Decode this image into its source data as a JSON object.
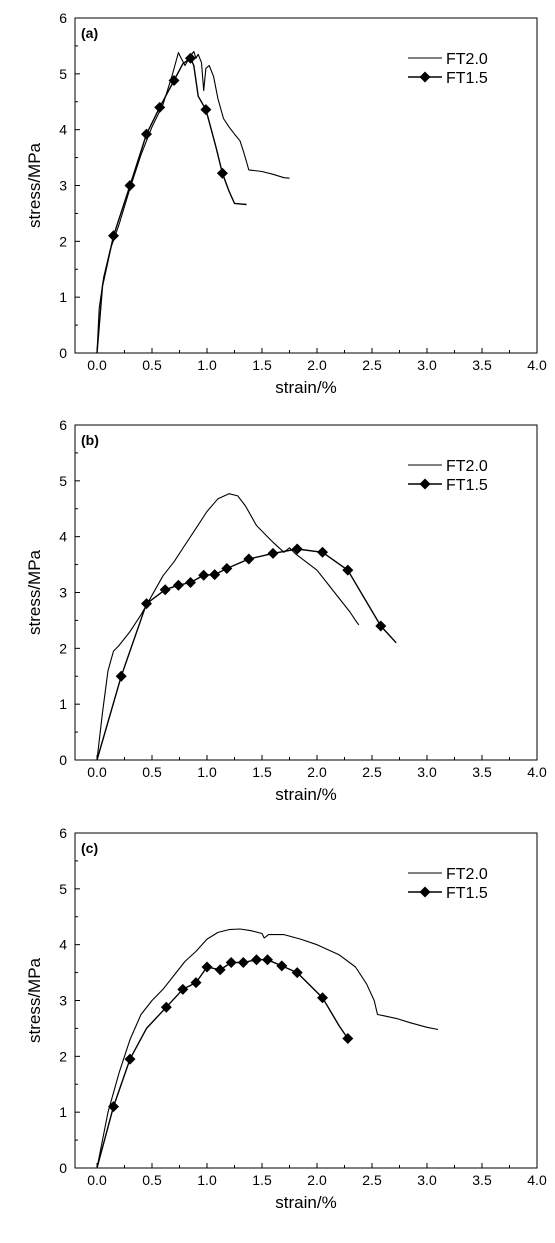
{
  "chart_data": [
    {
      "type": "line",
      "panel_label": "(a)",
      "xlabel": "strain/%",
      "ylabel": "stress/MPa",
      "xlim": [
        -0.2,
        4.0
      ],
      "ylim": [
        0,
        6
      ],
      "xticks": [
        0.0,
        0.5,
        1.0,
        1.5,
        2.0,
        2.5,
        3.0,
        3.5,
        4.0
      ],
      "xtick_labels": [
        "0.0",
        "0.5",
        "1.0",
        "1.5",
        "2.0",
        "2.5",
        "3.0",
        "3.5",
        "4.0"
      ],
      "yticks": [
        0,
        1,
        2,
        3,
        4,
        5,
        6
      ],
      "ytick_labels": [
        "0",
        "1",
        "2",
        "3",
        "4",
        "5",
        "6"
      ],
      "grid": false,
      "legend_position": "top-right",
      "series": [
        {
          "name": "FT2.0",
          "marker": "none",
          "points": [
            [
              0.0,
              0.0
            ],
            [
              0.02,
              0.8
            ],
            [
              0.06,
              1.35
            ],
            [
              0.12,
              1.85
            ],
            [
              0.2,
              2.3
            ],
            [
              0.3,
              2.95
            ],
            [
              0.4,
              3.55
            ],
            [
              0.5,
              4.05
            ],
            [
              0.6,
              4.45
            ],
            [
              0.68,
              4.95
            ],
            [
              0.74,
              5.38
            ],
            [
              0.76,
              5.3
            ],
            [
              0.8,
              5.15
            ],
            [
              0.85,
              5.32
            ],
            [
              0.88,
              5.4
            ],
            [
              0.9,
              5.28
            ],
            [
              0.92,
              5.35
            ],
            [
              0.95,
              5.2
            ],
            [
              0.97,
              4.7
            ],
            [
              0.99,
              5.1
            ],
            [
              1.02,
              5.15
            ],
            [
              1.06,
              4.95
            ],
            [
              1.1,
              4.55
            ],
            [
              1.15,
              4.2
            ],
            [
              1.2,
              4.05
            ],
            [
              1.25,
              3.92
            ],
            [
              1.3,
              3.8
            ],
            [
              1.33,
              3.62
            ],
            [
              1.36,
              3.42
            ],
            [
              1.38,
              3.28
            ],
            [
              1.42,
              3.27
            ],
            [
              1.5,
              3.25
            ],
            [
              1.6,
              3.2
            ],
            [
              1.7,
              3.14
            ],
            [
              1.75,
              3.13
            ]
          ]
        },
        {
          "name": "FT1.5",
          "marker": "diamond",
          "points": [
            [
              0.0,
              0.0
            ],
            [
              0.05,
              1.2
            ],
            [
              0.15,
              2.1
            ],
            [
              0.3,
              3.0
            ],
            [
              0.45,
              3.92
            ],
            [
              0.57,
              4.4
            ],
            [
              0.7,
              4.88
            ],
            [
              0.78,
              5.18
            ],
            [
              0.85,
              5.28
            ],
            [
              0.88,
              5.15
            ],
            [
              0.92,
              4.6
            ],
            [
              0.99,
              4.36
            ],
            [
              1.08,
              3.7
            ],
            [
              1.14,
              3.22
            ],
            [
              1.2,
              2.9
            ],
            [
              1.25,
              2.68
            ],
            [
              1.3,
              2.67
            ],
            [
              1.36,
              2.66
            ]
          ],
          "marker_points": [
            [
              0.15,
              2.1
            ],
            [
              0.3,
              3.0
            ],
            [
              0.45,
              3.92
            ],
            [
              0.57,
              4.4
            ],
            [
              0.7,
              4.88
            ],
            [
              0.85,
              5.28
            ],
            [
              0.99,
              4.36
            ],
            [
              1.14,
              3.22
            ]
          ]
        }
      ]
    },
    {
      "type": "line",
      "panel_label": "(b)",
      "xlabel": "strain/%",
      "ylabel": "stress/MPa",
      "xlim": [
        -0.2,
        4.0
      ],
      "ylim": [
        0,
        6
      ],
      "xticks": [
        0.0,
        0.5,
        1.0,
        1.5,
        2.0,
        2.5,
        3.0,
        3.5,
        4.0
      ],
      "xtick_labels": [
        "0.0",
        "0.5",
        "1.0",
        "1.5",
        "2.0",
        "2.5",
        "3.0",
        "3.5",
        "4.0"
      ],
      "yticks": [
        0,
        1,
        2,
        3,
        4,
        5,
        6
      ],
      "ytick_labels": [
        "0",
        "1",
        "2",
        "3",
        "4",
        "5",
        "6"
      ],
      "grid": false,
      "legend_position": "top-right",
      "series": [
        {
          "name": "FT2.0",
          "marker": "none",
          "points": [
            [
              0.0,
              0.0
            ],
            [
              0.05,
              0.85
            ],
            [
              0.1,
              1.6
            ],
            [
              0.15,
              1.95
            ],
            [
              0.2,
              2.05
            ],
            [
              0.3,
              2.3
            ],
            [
              0.4,
              2.6
            ],
            [
              0.5,
              2.95
            ],
            [
              0.6,
              3.3
            ],
            [
              0.7,
              3.55
            ],
            [
              0.8,
              3.85
            ],
            [
              0.9,
              4.15
            ],
            [
              1.0,
              4.45
            ],
            [
              1.1,
              4.68
            ],
            [
              1.2,
              4.77
            ],
            [
              1.28,
              4.73
            ],
            [
              1.35,
              4.55
            ],
            [
              1.45,
              4.2
            ],
            [
              1.55,
              4.0
            ],
            [
              1.6,
              3.9
            ],
            [
              1.7,
              3.72
            ],
            [
              1.75,
              3.8
            ],
            [
              1.8,
              3.7
            ],
            [
              1.9,
              3.55
            ],
            [
              2.0,
              3.4
            ],
            [
              2.1,
              3.15
            ],
            [
              2.2,
              2.9
            ],
            [
              2.3,
              2.65
            ],
            [
              2.35,
              2.5
            ],
            [
              2.38,
              2.42
            ]
          ]
        },
        {
          "name": "FT1.5",
          "marker": "diamond",
          "points": [
            [
              0.0,
              0.0
            ],
            [
              0.22,
              1.5
            ],
            [
              0.45,
              2.8
            ],
            [
              0.62,
              3.05
            ],
            [
              0.74,
              3.13
            ],
            [
              0.85,
              3.18
            ],
            [
              0.97,
              3.31
            ],
            [
              1.07,
              3.32
            ],
            [
              1.18,
              3.43
            ],
            [
              1.38,
              3.6
            ],
            [
              1.6,
              3.7
            ],
            [
              1.82,
              3.78
            ],
            [
              2.05,
              3.72
            ],
            [
              2.28,
              3.4
            ],
            [
              2.58,
              2.4
            ],
            [
              2.72,
              2.1
            ]
          ],
          "marker_points": [
            [
              0.22,
              1.5
            ],
            [
              0.45,
              2.8
            ],
            [
              0.62,
              3.05
            ],
            [
              0.74,
              3.13
            ],
            [
              0.85,
              3.18
            ],
            [
              0.97,
              3.31
            ],
            [
              1.07,
              3.32
            ],
            [
              1.18,
              3.43
            ],
            [
              1.38,
              3.6
            ],
            [
              1.6,
              3.7
            ],
            [
              1.82,
              3.78
            ],
            [
              2.05,
              3.72
            ],
            [
              2.28,
              3.4
            ],
            [
              2.58,
              2.4
            ]
          ]
        }
      ]
    },
    {
      "type": "line",
      "panel_label": "(c)",
      "xlabel": "strain/%",
      "ylabel": "stress/MPa",
      "xlim": [
        -0.2,
        4.0
      ],
      "ylim": [
        0,
        6
      ],
      "xticks": [
        0.0,
        0.5,
        1.0,
        1.5,
        2.0,
        2.5,
        3.0,
        3.5,
        4.0
      ],
      "xtick_labels": [
        "0.0",
        "0.5",
        "1.0",
        "1.5",
        "2.0",
        "2.5",
        "3.0",
        "3.5",
        "4.0"
      ],
      "yticks": [
        0,
        1,
        2,
        3,
        4,
        5,
        6
      ],
      "ytick_labels": [
        "0",
        "1",
        "2",
        "3",
        "4",
        "5",
        "6"
      ],
      "grid": false,
      "legend_position": "top-right",
      "series": [
        {
          "name": "FT2.0",
          "marker": "none",
          "points": [
            [
              0.0,
              0.0
            ],
            [
              0.1,
              1.0
            ],
            [
              0.2,
              1.7
            ],
            [
              0.3,
              2.3
            ],
            [
              0.4,
              2.75
            ],
            [
              0.5,
              3.0
            ],
            [
              0.6,
              3.2
            ],
            [
              0.7,
              3.45
            ],
            [
              0.8,
              3.7
            ],
            [
              0.9,
              3.88
            ],
            [
              1.0,
              4.1
            ],
            [
              1.1,
              4.22
            ],
            [
              1.2,
              4.27
            ],
            [
              1.3,
              4.28
            ],
            [
              1.4,
              4.25
            ],
            [
              1.5,
              4.2
            ],
            [
              1.52,
              4.12
            ],
            [
              1.56,
              4.18
            ],
            [
              1.7,
              4.18
            ],
            [
              1.85,
              4.1
            ],
            [
              2.0,
              4.0
            ],
            [
              2.2,
              3.82
            ],
            [
              2.35,
              3.6
            ],
            [
              2.45,
              3.3
            ],
            [
              2.52,
              3.0
            ],
            [
              2.55,
              2.75
            ],
            [
              2.62,
              2.72
            ],
            [
              2.72,
              2.68
            ],
            [
              2.85,
              2.6
            ],
            [
              3.0,
              2.52
            ],
            [
              3.1,
              2.48
            ]
          ]
        },
        {
          "name": "FT1.5",
          "marker": "diamond",
          "points": [
            [
              0.0,
              0.0
            ],
            [
              0.15,
              1.1
            ],
            [
              0.3,
              1.95
            ],
            [
              0.45,
              2.5
            ],
            [
              0.63,
              2.88
            ],
            [
              0.78,
              3.2
            ],
            [
              0.9,
              3.32
            ],
            [
              1.0,
              3.6
            ],
            [
              1.12,
              3.55
            ],
            [
              1.22,
              3.68
            ],
            [
              1.33,
              3.68
            ],
            [
              1.45,
              3.73
            ],
            [
              1.55,
              3.73
            ],
            [
              1.68,
              3.62
            ],
            [
              1.82,
              3.5
            ],
            [
              2.05,
              3.05
            ],
            [
              2.2,
              2.55
            ],
            [
              2.28,
              2.32
            ]
          ],
          "marker_points": [
            [
              0.15,
              1.1
            ],
            [
              0.3,
              1.95
            ],
            [
              0.63,
              2.88
            ],
            [
              0.78,
              3.2
            ],
            [
              0.9,
              3.32
            ],
            [
              1.0,
              3.6
            ],
            [
              1.12,
              3.55
            ],
            [
              1.22,
              3.68
            ],
            [
              1.33,
              3.68
            ],
            [
              1.45,
              3.73
            ],
            [
              1.55,
              3.73
            ],
            [
              1.68,
              3.62
            ],
            [
              1.82,
              3.5
            ],
            [
              2.05,
              3.05
            ],
            [
              2.28,
              2.32
            ]
          ]
        }
      ]
    }
  ]
}
